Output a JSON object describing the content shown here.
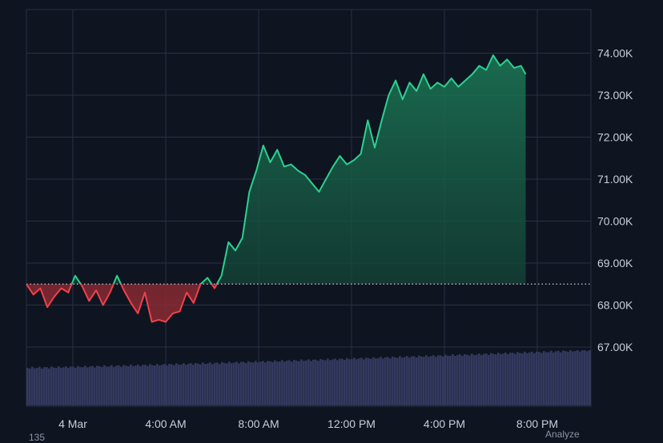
{
  "chart_data": {
    "type": "area",
    "x_ticks": [
      "4 Mar",
      "4:00 AM",
      "8:00 AM",
      "12:00 PM",
      "4:00 PM",
      "8:00 PM"
    ],
    "y_ticks": [
      "67.00K",
      "68.00K",
      "69.00K",
      "70.00K",
      "71.00K",
      "72.00K",
      "73.00K",
      "74.00K"
    ],
    "ylim": [
      66600,
      74800
    ],
    "baseline": 68500,
    "grid": true,
    "price": {
      "hours": [
        0,
        0.3,
        0.6,
        0.9,
        1.2,
        1.5,
        1.8,
        2.1,
        2.4,
        2.7,
        3.0,
        3.3,
        3.6,
        3.9,
        4.2,
        4.5,
        4.8,
        5.1,
        5.4,
        5.7,
        6.0,
        6.3,
        6.6,
        6.9,
        7.2,
        7.5,
        7.8,
        8.1,
        8.4,
        8.7,
        9.0,
        9.3,
        9.6,
        9.9,
        10.2,
        10.5,
        10.8,
        11.1,
        11.4,
        11.7,
        12.0,
        12.3,
        12.6,
        12.9,
        13.2,
        13.5,
        13.8,
        14.1,
        14.4,
        14.7,
        15.0,
        15.3,
        15.6,
        15.9,
        16.2,
        16.5,
        16.8,
        17.1,
        17.4,
        17.7,
        18.0,
        18.3,
        18.6,
        18.9,
        19.2,
        19.5,
        19.8,
        20.1,
        20.4,
        20.7,
        21.0,
        21.3,
        21.5
      ],
      "values": [
        68500,
        68250,
        68400,
        67950,
        68200,
        68400,
        68300,
        68700,
        68450,
        68100,
        68350,
        68000,
        68300,
        68700,
        68350,
        68050,
        67800,
        68300,
        67600,
        67650,
        67600,
        67800,
        67850,
        68300,
        68050,
        68500,
        68650,
        68400,
        68700,
        69500,
        69300,
        69600,
        70700,
        71200,
        71800,
        71400,
        71700,
        71300,
        71350,
        71200,
        71100,
        70900,
        70700,
        71000,
        71300,
        71550,
        71350,
        71450,
        71600,
        72400,
        71750,
        72400,
        73000,
        73350,
        72900,
        73300,
        73100,
        73500,
        73150,
        73300,
        73200,
        73400,
        73200,
        73350,
        73500,
        73700,
        73600,
        73950,
        73700,
        73850,
        73650,
        73700,
        73500
      ]
    },
    "volume": {
      "start": 0.87,
      "end": 1.0
    },
    "colors": {
      "up": "#2bd18f",
      "down": "#f0414c",
      "volume": "#33395e",
      "grid": "#2a3142",
      "baseline": "#c9ced8"
    }
  },
  "footer": {
    "left_text": "135",
    "right_text": "Analyze"
  }
}
